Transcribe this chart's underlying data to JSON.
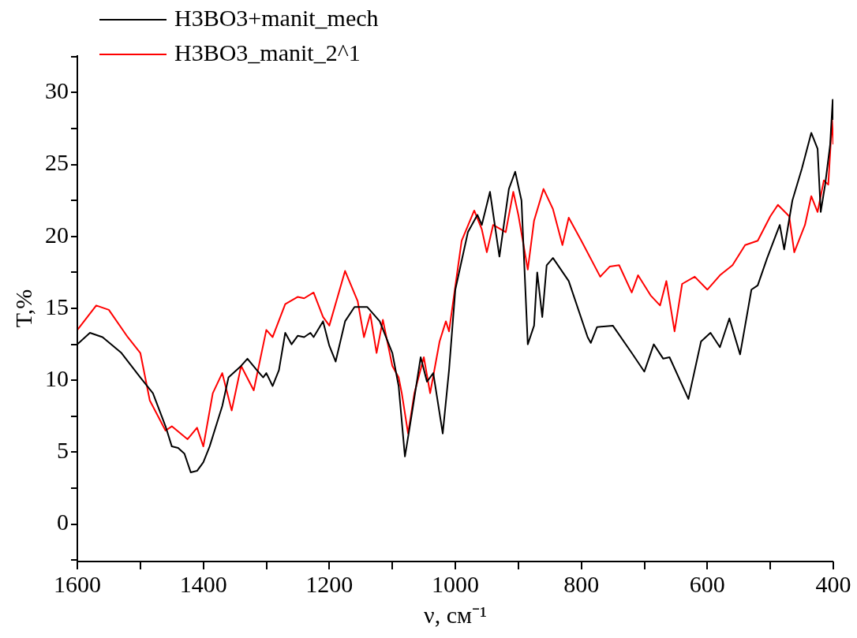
{
  "chart_data": {
    "type": "line",
    "xlabel": "ν, см⁻¹",
    "ylabel": "T,%",
    "legend": "top",
    "grid": false,
    "line_style": "solid",
    "marker": "none",
    "xlim": [
      1600,
      400
    ],
    "ylim": [
      -2.6,
      32.6
    ],
    "xticks": [
      1600,
      {
        "value": 1500,
        "label": null
      },
      1400,
      {
        "value": 1300,
        "label": null
      },
      1200,
      {
        "value": 1100,
        "label": null
      },
      1000,
      {
        "value": 900,
        "label": null
      },
      800,
      {
        "value": 700,
        "label": null
      },
      600,
      {
        "value": 500,
        "label": null
      },
      400
    ],
    "yticks": [
      {
        "value": -2.5,
        "label": null
      },
      0,
      {
        "value": 2.5,
        "label": null
      },
      5,
      {
        "value": 7.5,
        "label": null
      },
      10,
      {
        "value": 12.5,
        "label": null
      },
      15,
      {
        "value": 17.5,
        "label": null
      },
      20,
      {
        "value": 22.5,
        "label": null
      },
      25,
      {
        "value": 27.5,
        "label": null
      },
      30,
      {
        "value": 32.5,
        "label": null
      }
    ],
    "series": [
      {
        "name": "H3BO3+manit_mech",
        "color": "#000000",
        "x": [
          1600,
          1580,
          1560,
          1530,
          1500,
          1480,
          1460,
          1450,
          1440,
          1430,
          1420,
          1410,
          1400,
          1390,
          1380,
          1370,
          1360,
          1340,
          1330,
          1315,
          1305,
          1300,
          1290,
          1280,
          1270,
          1260,
          1250,
          1240,
          1230,
          1225,
          1210,
          1200,
          1190,
          1175,
          1160,
          1140,
          1120,
          1100,
          1090,
          1080,
          1070,
          1055,
          1045,
          1035,
          1020,
          1010,
          1000,
          980,
          965,
          958,
          945,
          930,
          915,
          905,
          895,
          885,
          875,
          870,
          862,
          855,
          845,
          820,
          790,
          785,
          775,
          750,
          720,
          700,
          685,
          670,
          660,
          630,
          610,
          595,
          580,
          565,
          548,
          530,
          520,
          505,
          485,
          478,
          465,
          450,
          435,
          425,
          420,
          413,
          405,
          401,
          400
        ],
        "values": [
          12.5,
          13.3,
          13.0,
          11.9,
          10.2,
          9.1,
          6.8,
          5.4,
          5.3,
          4.9,
          3.6,
          3.7,
          4.3,
          5.4,
          6.8,
          8.2,
          10.2,
          11.0,
          11.5,
          10.7,
          10.2,
          10.5,
          9.6,
          10.7,
          13.3,
          12.5,
          13.1,
          13.0,
          13.3,
          13.0,
          14.1,
          12.4,
          11.3,
          14.1,
          15.1,
          15.1,
          14.1,
          11.9,
          9.6,
          4.7,
          7.4,
          11.6,
          9.9,
          10.5,
          6.3,
          10.7,
          16.3,
          20.3,
          21.5,
          20.8,
          23.1,
          18.6,
          23.3,
          24.5,
          22.5,
          12.5,
          13.8,
          17.5,
          14.4,
          18.0,
          18.5,
          16.9,
          13.0,
          12.6,
          13.7,
          13.8,
          11.9,
          10.6,
          12.5,
          11.5,
          11.6,
          8.7,
          12.7,
          13.3,
          12.3,
          14.3,
          11.8,
          16.3,
          16.6,
          18.5,
          20.8,
          19.1,
          22.5,
          24.7,
          27.2,
          26.1,
          21.7,
          23.6,
          26.4,
          29.5,
          28.1
        ]
      },
      {
        "name": "H3BO3_manit_2^1",
        "color": "#ff0000",
        "x": [
          1600,
          1570,
          1550,
          1520,
          1500,
          1485,
          1460,
          1450,
          1425,
          1410,
          1400,
          1385,
          1370,
          1355,
          1340,
          1320,
          1300,
          1290,
          1270,
          1250,
          1240,
          1225,
          1210,
          1200,
          1175,
          1155,
          1145,
          1135,
          1125,
          1115,
          1100,
          1090,
          1085,
          1075,
          1065,
          1050,
          1040,
          1025,
          1015,
          1010,
          990,
          970,
          958,
          950,
          940,
          920,
          908,
          900,
          885,
          875,
          860,
          845,
          830,
          820,
          800,
          770,
          755,
          740,
          720,
          710,
          690,
          675,
          665,
          652,
          640,
          620,
          600,
          580,
          560,
          540,
          520,
          500,
          488,
          470,
          462,
          445,
          435,
          425,
          415,
          408,
          402,
          400
        ],
        "values": [
          13.5,
          15.2,
          14.9,
          13.0,
          11.9,
          8.6,
          6.5,
          6.8,
          5.9,
          6.7,
          5.4,
          9.1,
          10.5,
          7.9,
          11.0,
          9.3,
          13.5,
          13.0,
          15.3,
          15.8,
          15.7,
          16.1,
          14.4,
          13.8,
          17.6,
          15.5,
          13.0,
          14.6,
          11.9,
          14.2,
          11.0,
          10.2,
          9.1,
          6.3,
          9.1,
          11.6,
          9.1,
          12.7,
          14.1,
          13.4,
          19.7,
          21.8,
          20.5,
          18.9,
          20.8,
          20.3,
          23.1,
          21.5,
          17.7,
          21.1,
          23.3,
          21.9,
          19.4,
          21.3,
          19.7,
          17.2,
          17.9,
          18.0,
          16.1,
          17.3,
          15.9,
          15.2,
          16.9,
          13.4,
          16.7,
          17.2,
          16.3,
          17.3,
          18.0,
          19.4,
          19.7,
          21.4,
          22.2,
          21.4,
          18.9,
          20.8,
          22.8,
          21.7,
          23.9,
          23.6,
          28.1,
          26.4
        ]
      }
    ]
  }
}
